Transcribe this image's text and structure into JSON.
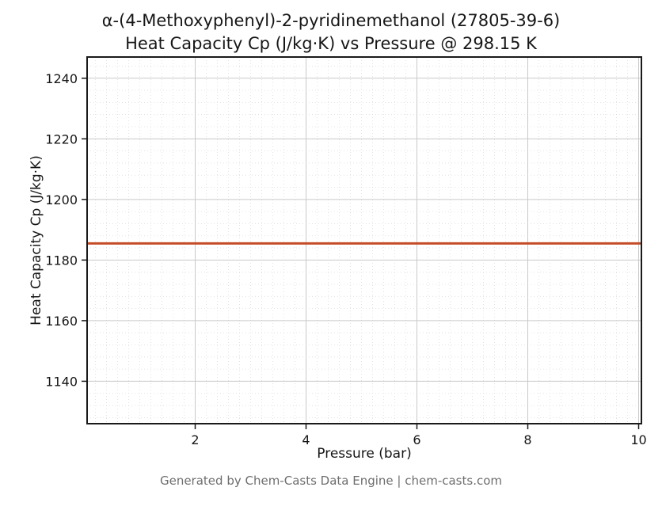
{
  "chart_data": {
    "type": "line",
    "title_line1": "α-(4-Methoxyphenyl)-2-pyridinemethanol (27805-39-6)",
    "title_line2": "Heat Capacity Cp (J/kg·K) vs Pressure @ 298.15 K",
    "xlabel": "Pressure (bar)",
    "ylabel": "Heat Capacity Cp (J/kg·K)",
    "footer": "Generated by Chem-Casts Data Engine | chem-casts.com",
    "xlim": [
      0.05,
      10.05
    ],
    "ylim": [
      1126,
      1247
    ],
    "x_ticks": [
      2,
      4,
      6,
      8,
      10
    ],
    "y_ticks": [
      1140,
      1160,
      1180,
      1200,
      1220,
      1240
    ],
    "x_minor_step": 0.2,
    "y_minor_step": 4,
    "grid": {
      "major": true,
      "minor": true,
      "legend": "none"
    },
    "series": [
      {
        "name": "Heat Capacity Cp",
        "x": [
          0.05,
          10.05
        ],
        "y": [
          1185.5,
          1185.5
        ],
        "color": "#c44d28",
        "linewidth": 3
      }
    ],
    "colors": {
      "spine": "#1a1a1a",
      "major_grid": "#c9c9c9",
      "minor_grid": "#dcdcdc",
      "plot_bg": "#ffffff"
    }
  }
}
